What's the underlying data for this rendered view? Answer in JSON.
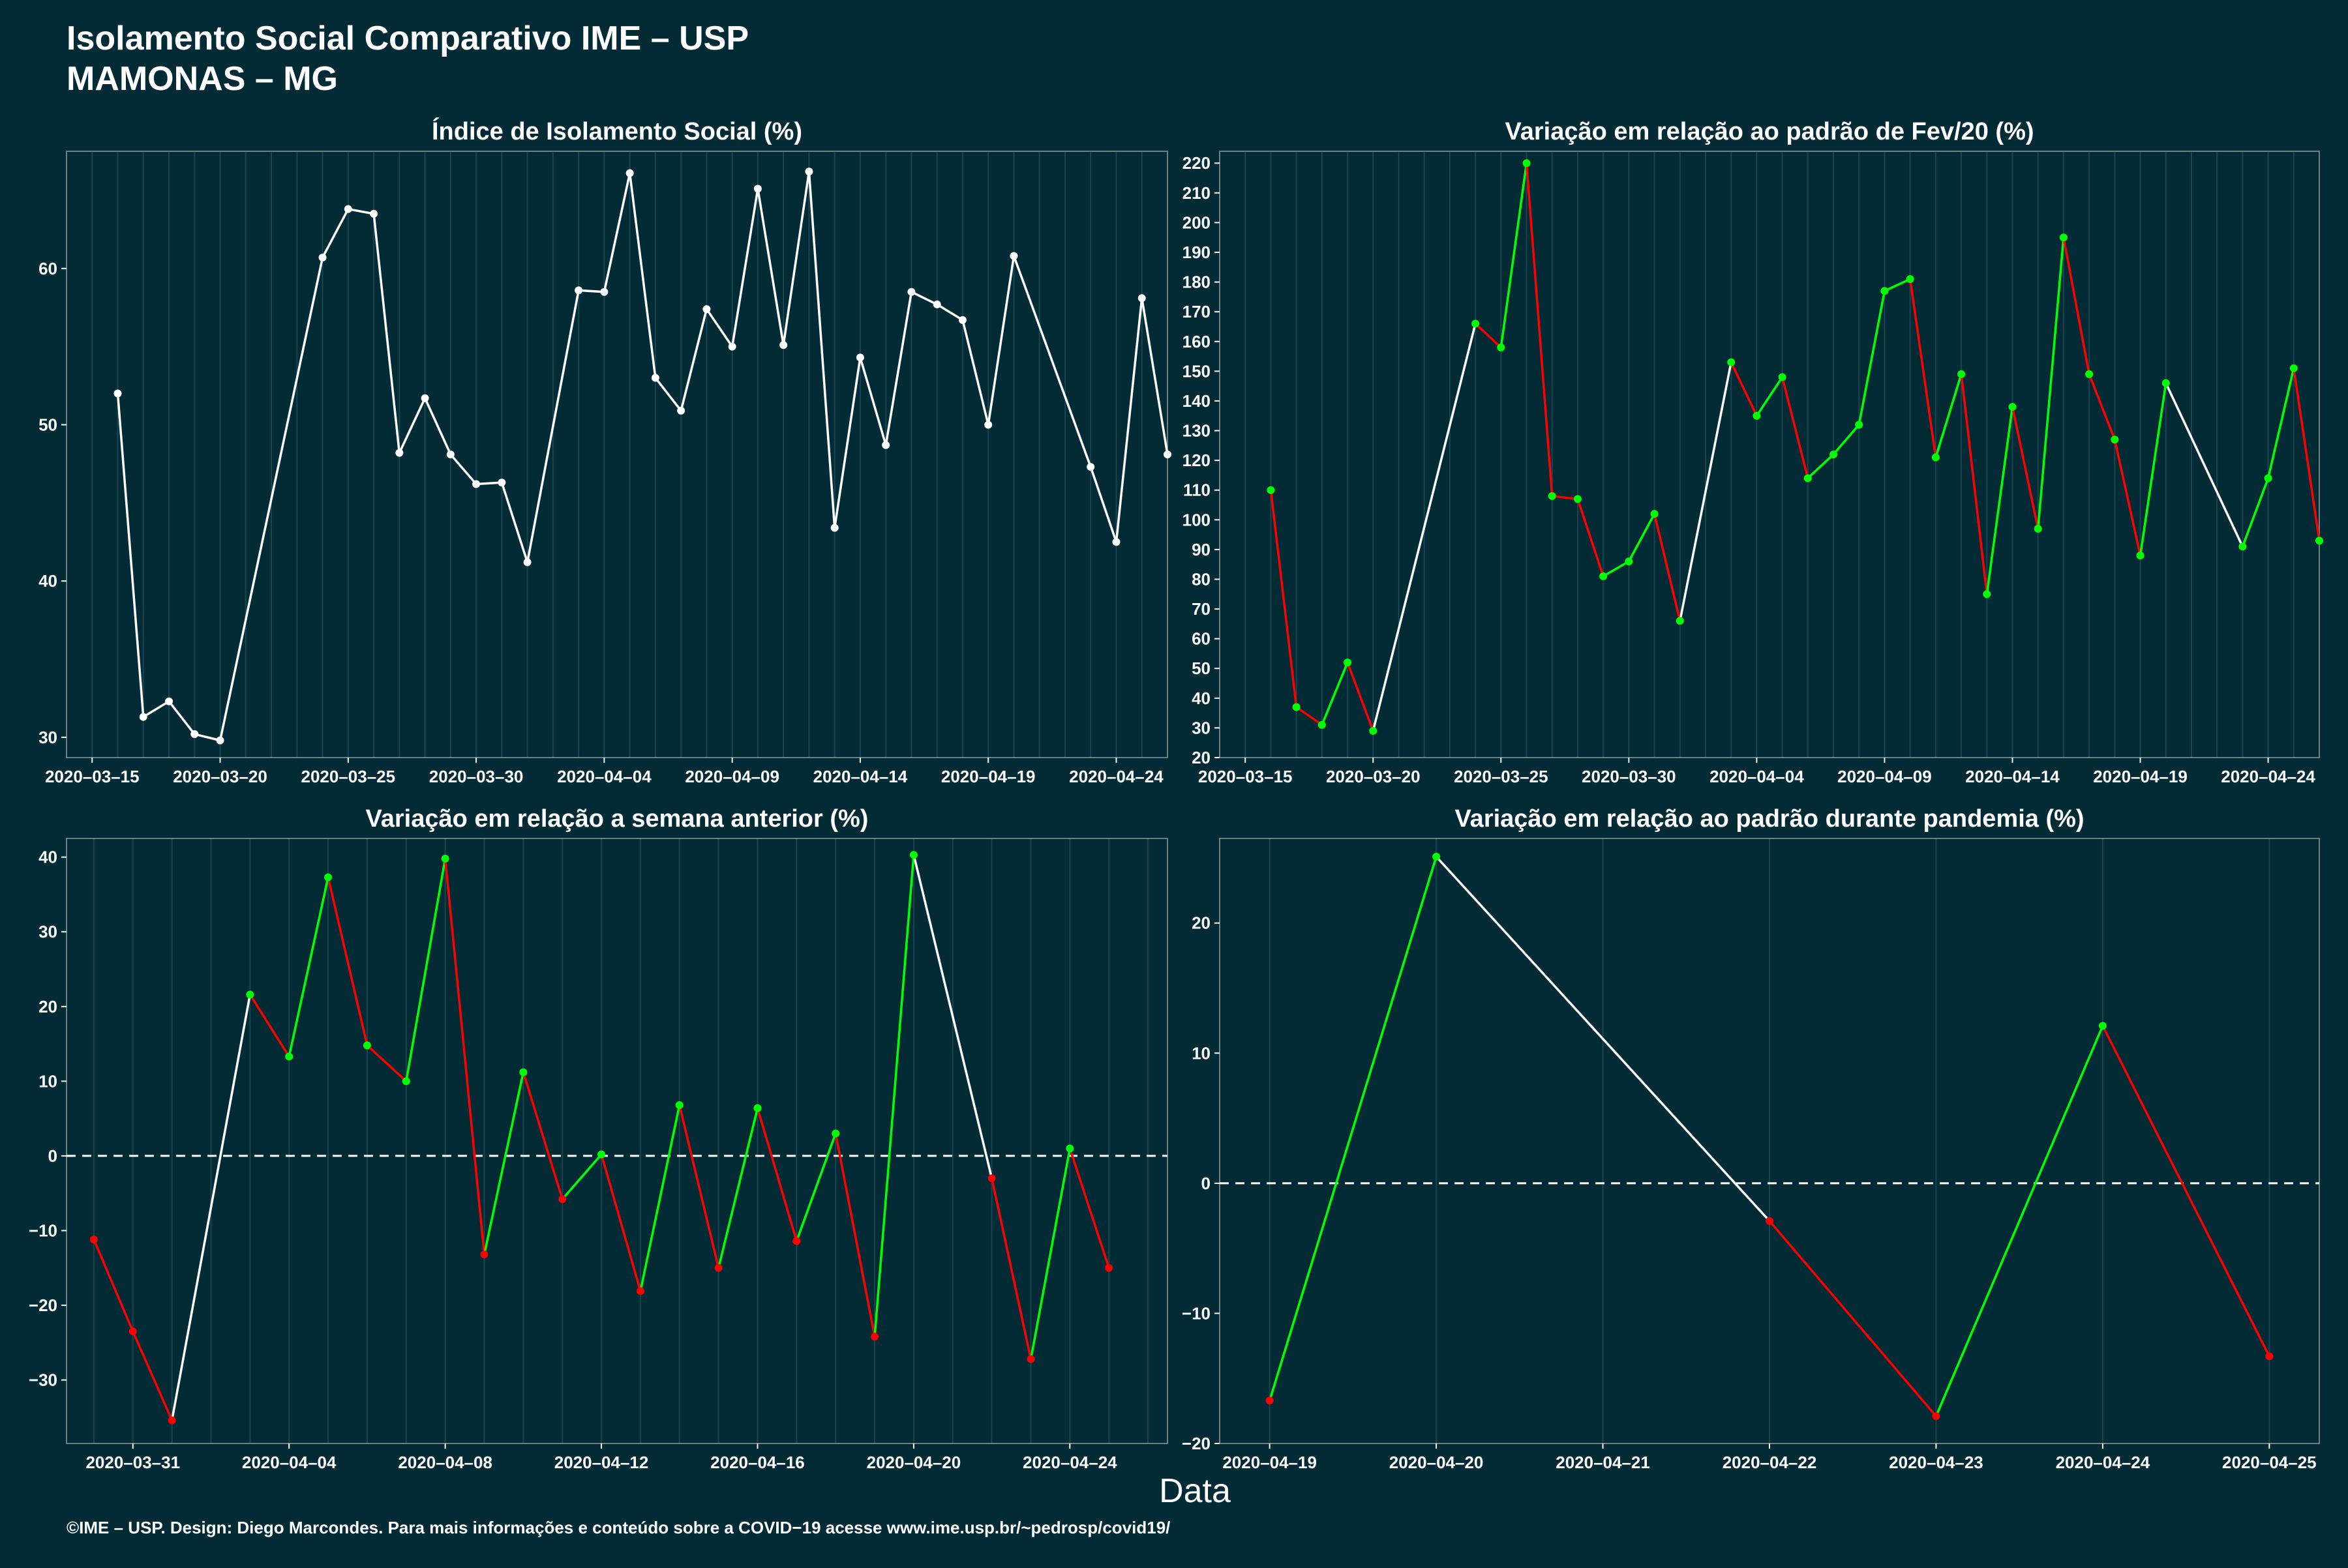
{
  "header": {
    "title_line1": "Isolamento Social Comparativo IME – USP",
    "title_line2": "MAMONAS – MG"
  },
  "footer": {
    "x_axis_title": "Data",
    "caption": "©IME – USP. Design: Diego Marcondes. Para mais informações e conteúdo sobre a COVID−19 acesse www.ime.usp.br/~pedrosp/covid19/"
  },
  "colors": {
    "background": "#022b36",
    "panel_border": "#6a7f86",
    "grid": "#1a4450",
    "neutral_line": "#ffffff",
    "increase": "#00ff00",
    "decrease": "#ff0000"
  },
  "chart_data": [
    {
      "type": "line",
      "title": "Índice de Isolamento Social (%)",
      "color_mode": "white",
      "x_unit": "date",
      "x_ticks": [
        "2020-03-15",
        "2020-03-20",
        "2020-03-25",
        "2020-03-30",
        "2020-04-04",
        "2020-04-09",
        "2020-04-14",
        "2020-04-19",
        "2020-04-24"
      ],
      "y_ticks": [
        30,
        40,
        50,
        60
      ],
      "ylim": [
        28.7,
        67.5
      ],
      "xlim": [
        "2020-03-14",
        "2020-04-26"
      ],
      "zero_line": false,
      "series": [
        {
          "x": [
            "2020-03-16",
            "2020-03-17",
            "2020-03-18",
            "2020-03-19",
            "2020-03-20",
            "2020-03-24",
            "2020-03-25",
            "2020-03-26",
            "2020-03-27",
            "2020-03-28",
            "2020-03-29",
            "2020-03-30",
            "2020-03-31",
            "2020-04-01",
            "2020-04-03",
            "2020-04-04",
            "2020-04-05",
            "2020-04-06",
            "2020-04-07",
            "2020-04-08",
            "2020-04-09",
            "2020-04-10",
            "2020-04-11",
            "2020-04-12",
            "2020-04-13",
            "2020-04-14",
            "2020-04-15",
            "2020-04-16",
            "2020-04-17",
            "2020-04-18",
            "2020-04-19",
            "2020-04-20",
            "2020-04-23",
            "2020-04-24",
            "2020-04-25",
            "2020-04-26"
          ],
          "y": [
            52.0,
            31.3,
            32.3,
            30.2,
            29.8,
            60.7,
            63.8,
            63.5,
            48.2,
            51.7,
            48.1,
            46.2,
            46.3,
            41.2,
            58.6,
            58.5,
            66.1,
            53.0,
            50.9,
            57.4,
            55.0,
            65.1,
            55.1,
            66.2,
            43.4,
            54.3,
            48.7,
            58.5,
            57.7,
            56.7,
            50.0,
            60.8,
            47.3,
            42.5,
            58.1,
            48.1
          ]
        }
      ]
    },
    {
      "type": "line",
      "title": "Variação em relação ao padrão de Fev/20 (%)",
      "color_mode": "trend",
      "x_unit": "date",
      "x_ticks": [
        "2020-03-15",
        "2020-03-20",
        "2020-03-25",
        "2020-03-30",
        "2020-04-04",
        "2020-04-09",
        "2020-04-14",
        "2020-04-19",
        "2020-04-24"
      ],
      "y_ticks": [
        20,
        30,
        40,
        50,
        60,
        70,
        80,
        90,
        100,
        110,
        120,
        130,
        140,
        150,
        160,
        170,
        180,
        190,
        200,
        210,
        220
      ],
      "ylim": [
        20,
        224
      ],
      "xlim": [
        "2020-03-14",
        "2020-04-26"
      ],
      "zero_line": false,
      "series": [
        {
          "x": [
            "2020-03-16",
            "2020-03-17",
            "2020-03-18",
            "2020-03-19",
            "2020-03-20",
            "2020-03-24",
            "2020-03-25",
            "2020-03-26",
            "2020-03-27",
            "2020-03-28",
            "2020-03-29",
            "2020-03-30",
            "2020-03-31",
            "2020-04-01",
            "2020-04-03",
            "2020-04-04",
            "2020-04-05",
            "2020-04-06",
            "2020-04-07",
            "2020-04-08",
            "2020-04-09",
            "2020-04-10",
            "2020-04-11",
            "2020-04-12",
            "2020-04-13",
            "2020-04-14",
            "2020-04-15",
            "2020-04-16",
            "2020-04-17",
            "2020-04-18",
            "2020-04-19",
            "2020-04-20",
            "2020-04-23",
            "2020-04-24",
            "2020-04-25",
            "2020-04-26"
          ],
          "y": [
            110,
            37,
            31,
            52,
            29,
            166,
            158,
            220,
            108,
            107,
            81,
            86,
            102,
            66,
            153,
            135,
            148,
            114,
            122,
            132,
            177,
            181,
            121,
            149,
            75,
            138,
            97,
            195,
            149,
            127,
            88,
            146,
            91,
            114,
            151,
            93
          ]
        }
      ]
    },
    {
      "type": "line",
      "title": "Variação em relação a semana anterior (%)",
      "color_mode": "trend",
      "x_unit": "date",
      "x_ticks": [
        "2020-03-31",
        "2020-04-04",
        "2020-04-08",
        "2020-04-12",
        "2020-04-16",
        "2020-04-20",
        "2020-04-24"
      ],
      "y_ticks": [
        -30,
        -20,
        -10,
        0,
        10,
        20,
        30,
        40
      ],
      "ylim": [
        -38.5,
        42.5
      ],
      "xlim": [
        "2020-03-29.3",
        "2020-04-26.5"
      ],
      "zero_line": true,
      "series": [
        {
          "x": [
            "2020-03-30",
            "2020-03-31",
            "2020-04-01",
            "2020-04-03",
            "2020-04-04",
            "2020-04-05",
            "2020-04-06",
            "2020-04-07",
            "2020-04-08",
            "2020-04-09",
            "2020-04-10",
            "2020-04-11",
            "2020-04-12",
            "2020-04-13",
            "2020-04-14",
            "2020-04-15",
            "2020-04-16",
            "2020-04-17",
            "2020-04-18",
            "2020-04-19",
            "2020-04-20",
            "2020-04-22",
            "2020-04-23",
            "2020-04-24",
            "2020-04-25"
          ],
          "y": [
            -11.2,
            -23.5,
            -35.4,
            21.6,
            13.3,
            37.3,
            14.8,
            10.0,
            39.8,
            -13.2,
            11.2,
            -5.8,
            0.2,
            -18.1,
            6.8,
            -15.0,
            6.4,
            -11.4,
            3.0,
            -24.2,
            40.3,
            -3.0,
            -27.2,
            1.0,
            -15.0
          ]
        }
      ]
    },
    {
      "type": "line",
      "title": "Variação em relação ao padrão durante pandemia (%)",
      "color_mode": "trend",
      "x_unit": "date",
      "x_ticks": [
        "2020-04-19",
        "2020-04-20",
        "2020-04-21",
        "2020-04-22",
        "2020-04-23",
        "2020-04-24",
        "2020-04-25"
      ],
      "y_ticks": [
        -20,
        -10,
        0,
        10,
        20
      ],
      "ylim": [
        -20,
        26.5
      ],
      "xlim": [
        "2020-04-18.7",
        "2020-04-25.3"
      ],
      "zero_line": true,
      "series": [
        {
          "x": [
            "2020-04-19",
            "2020-04-20",
            "2020-04-22",
            "2020-04-23",
            "2020-04-24",
            "2020-04-25"
          ],
          "y": [
            -16.7,
            25.1,
            -2.9,
            -17.9,
            12.1,
            -13.3
          ]
        }
      ]
    }
  ]
}
